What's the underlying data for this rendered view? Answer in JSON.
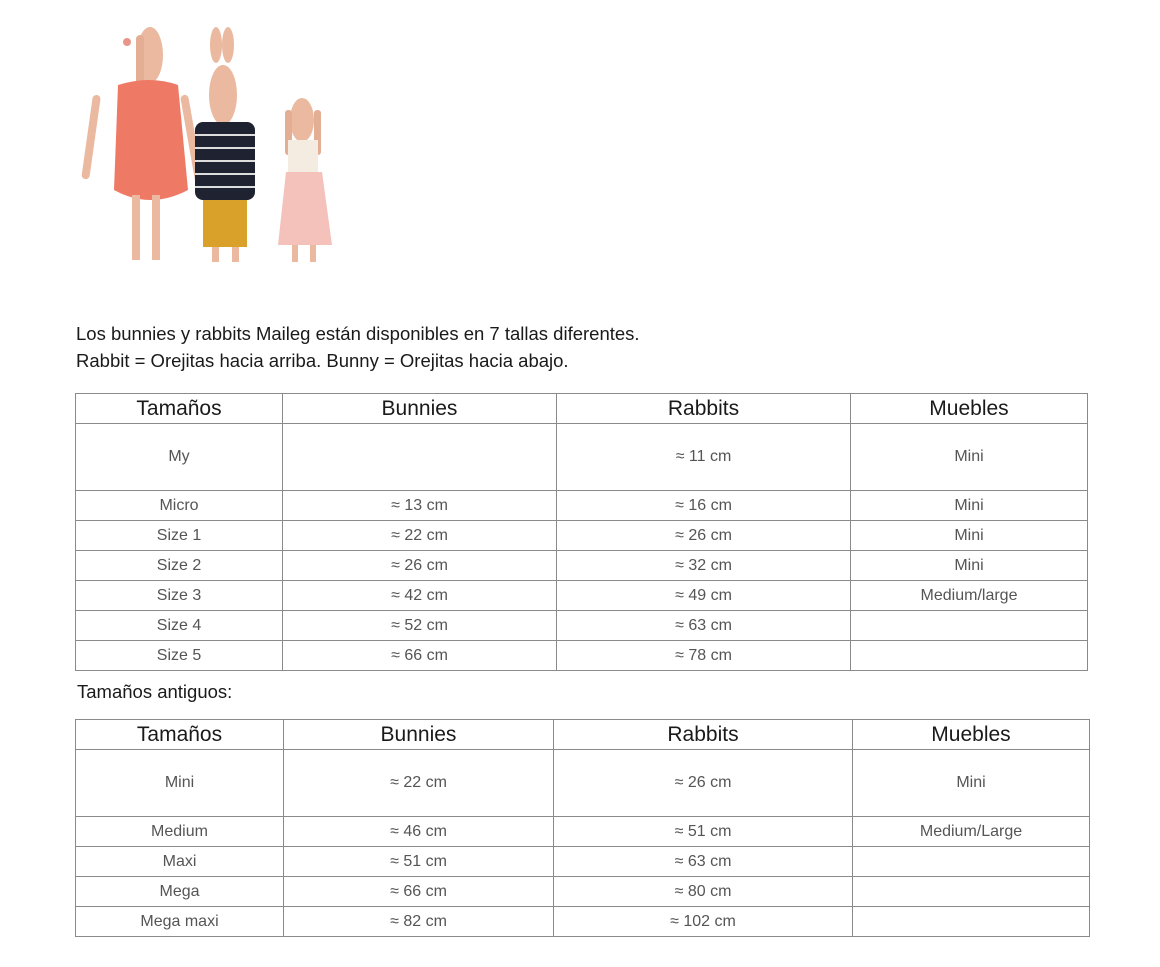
{
  "intro": {
    "line1": "Los bunnies y rabbits Maileg están disponibles en 7 tallas diferentes.",
    "line2": "Rabbit = Orejitas hacia arriba. Bunny = Orejitas hacia abajo."
  },
  "headers": [
    "Tamaños",
    "Bunnies",
    "Rabbits",
    "Muebles"
  ],
  "table1": [
    [
      "My",
      "",
      "≈ 11 cm",
      "Mini"
    ],
    [
      "Micro",
      "≈ 13 cm",
      "≈ 16 cm",
      "Mini"
    ],
    [
      "Size 1",
      "≈ 22 cm",
      "≈ 26 cm",
      "Mini"
    ],
    [
      "Size 2",
      "≈ 26 cm",
      "≈ 32 cm",
      "Mini"
    ],
    [
      "Size 3",
      "≈ 42 cm",
      "≈ 49 cm",
      "Medium/large"
    ],
    [
      "Size 4",
      "≈ 52 cm",
      "≈ 63 cm",
      ""
    ],
    [
      "Size 5",
      "≈ 66 cm",
      "≈ 78 cm",
      ""
    ]
  ],
  "subtitle": "Tamaños antiguos:",
  "table2": [
    [
      "Mini",
      "≈ 22 cm",
      "≈ 26 cm",
      "Mini"
    ],
    [
      "Medium",
      "≈ 46 cm",
      "≈ 51 cm",
      "Medium/Large"
    ],
    [
      "Maxi",
      "≈ 51 cm",
      "≈ 63 cm",
      ""
    ],
    [
      "Mega",
      "≈ 66 cm",
      "≈ 80 cm",
      ""
    ],
    [
      "Mega maxi",
      "≈ 82 cm",
      "≈ 102 cm",
      ""
    ]
  ]
}
